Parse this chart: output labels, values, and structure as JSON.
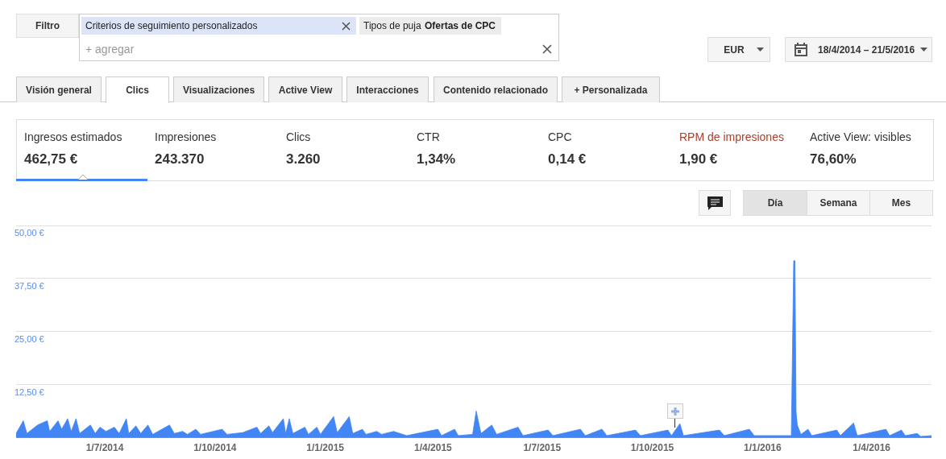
{
  "chart_data": {
    "type": "area",
    "annotations": [
      "Filtro",
      "Criterios de seguimiento personalizados",
      "Tipos de puja",
      "Ofertas de CPC",
      "+ agregar",
      "EUR",
      "18/4/2014 – 21/5/2016",
      "Visión general",
      "Clics",
      "Visualizaciones",
      "Active View",
      "Interacciones",
      "Contenido relacionado",
      "+ Personalizada",
      "Ingresos estimados",
      "462,75 €",
      "Impresiones",
      "243.370",
      "Clics",
      "3.260",
      "CTR",
      "1,34%",
      "CPC",
      "0,14 €",
      "RPM de impresiones",
      "1,90 €",
      "Active View: visibles",
      "76,60%",
      "Día",
      "Semana",
      "Mes"
    ],
    "x": [
      "2014-04-18",
      "2014-04-24",
      "2014-04-27",
      "2014-05-06",
      "2014-05-14",
      "2014-05-16",
      "2014-05-23",
      "2014-05-26",
      "2014-05-31",
      "2014-06-03",
      "2014-06-07",
      "2014-06-10",
      "2014-06-19",
      "2014-06-23",
      "2014-06-27",
      "2014-07-02",
      "2014-07-09",
      "2014-07-13",
      "2014-07-19",
      "2014-07-21",
      "2014-07-27",
      "2014-07-31",
      "2014-08-06",
      "2014-08-10",
      "2014-08-24",
      "2014-08-28",
      "2014-09-04",
      "2014-09-08",
      "2014-09-15",
      "2014-09-19",
      "2014-10-07",
      "2014-10-11",
      "2014-10-24",
      "2014-11-05",
      "2014-11-08",
      "2014-11-15",
      "2014-11-18",
      "2014-11-27",
      "2014-11-29",
      "2014-12-02",
      "2014-12-05",
      "2014-12-15",
      "2014-12-18",
      "2014-12-25",
      "2014-12-28",
      "2015-01-08",
      "2015-01-11",
      "2015-01-21",
      "2015-01-24",
      "2015-02-01",
      "2015-02-04",
      "2015-02-13",
      "2015-02-17",
      "2015-02-27",
      "2015-03-10",
      "2015-04-05",
      "2015-04-08",
      "2015-04-19",
      "2015-04-22",
      "2015-05-04",
      "2015-05-07",
      "2015-05-11",
      "2015-05-20",
      "2015-05-24",
      "2015-06-11",
      "2015-06-15",
      "2015-07-06",
      "2015-07-10",
      "2015-08-02",
      "2015-08-06",
      "2015-08-20",
      "2015-08-24",
      "2015-09-17",
      "2015-09-21",
      "2015-10-14",
      "2015-10-17",
      "2015-10-24",
      "2015-10-27",
      "2015-11-26",
      "2015-11-30",
      "2015-12-21",
      "2015-12-25",
      "2016-01-25",
      "2016-01-27",
      "2016-01-28",
      "2016-01-29",
      "2016-01-30",
      "2016-02-02",
      "2016-02-08",
      "2016-02-11",
      "2016-03-03",
      "2016-03-06",
      "2016-03-17",
      "2016-03-20",
      "2016-04-13",
      "2016-04-16",
      "2016-04-26",
      "2016-04-29",
      "2016-05-09",
      "2016-05-12",
      "2016-05-21"
    ],
    "series": [
      {
        "color": "#4285f4",
        "values": [
          1.0,
          4.0,
          1.0,
          3.0,
          4.0,
          1.5,
          4.0,
          2.0,
          4.5,
          1.5,
          4.5,
          1.0,
          3.0,
          1.0,
          2.5,
          1.5,
          2.5,
          1.0,
          4.5,
          1.0,
          2.8,
          1.0,
          3.0,
          0.8,
          3.0,
          1.0,
          1.5,
          0.8,
          2.0,
          0.8,
          2.0,
          0.8,
          1.2,
          2.5,
          1.0,
          2.8,
          1.2,
          4.5,
          1.0,
          4.5,
          1.0,
          2.5,
          0.8,
          2.5,
          0.8,
          5.0,
          1.2,
          5.0,
          1.0,
          2.0,
          0.8,
          1.5,
          0.8,
          1.5,
          0.5,
          2.0,
          0.5,
          2.0,
          0.5,
          0.8,
          6.3,
          1.0,
          3.0,
          0.8,
          2.5,
          0.5,
          1.8,
          0.5,
          2.0,
          0.5,
          2.0,
          0.5,
          1.8,
          0.5,
          1.8,
          0.5,
          3.3,
          0.5,
          1.8,
          0.5,
          2.0,
          0.5,
          0.5,
          41.7,
          41.7,
          6.0,
          3.0,
          0.8,
          2.0,
          0.5,
          1.8,
          0.5,
          3.5,
          0.5,
          2.0,
          0.5,
          1.8,
          0.5,
          1.0,
          0.3,
          0.5
        ]
      }
    ],
    "xlim": [
      "2014-04-18",
      "2016-05-21"
    ],
    "xticks": [
      {
        "value": "2014-07-01",
        "label": "1/7/2014"
      },
      {
        "value": "2014-10-01",
        "label": "1/10/2014"
      },
      {
        "value": "2015-01-01",
        "label": "1/1/2015"
      },
      {
        "value": "2015-04-01",
        "label": "1/4/2015"
      },
      {
        "value": "2015-07-01",
        "label": "1/7/2015"
      },
      {
        "value": "2015-10-01",
        "label": "1/10/2015"
      },
      {
        "value": "2016-01-01",
        "label": "1/1/2016"
      },
      {
        "value": "2016-04-01",
        "label": "1/4/2016"
      }
    ],
    "ylim": [
      0,
      50
    ],
    "yticks": [
      {
        "value": 0,
        "label": null
      },
      {
        "value": 12.5,
        "label": "12,50 €"
      },
      {
        "value": 25,
        "label": "25,00 €"
      },
      {
        "value": 37.5,
        "label": "37,50 €"
      },
      {
        "value": 50,
        "label": "50,00 €"
      }
    ],
    "grid": "y",
    "legend": false,
    "marker": "none"
  }
}
